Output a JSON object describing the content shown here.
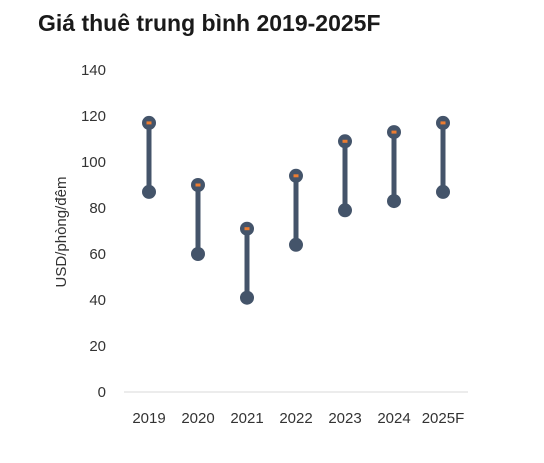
{
  "title": "Giá thuê trung bình 2019-2025F",
  "chart_data": {
    "type": "range",
    "title": "Giá thuê trung bình 2019-2025F",
    "xlabel": "",
    "ylabel": "USD/phòng/đêm",
    "categories": [
      "2019",
      "2020",
      "2021",
      "2022",
      "2023",
      "2024",
      "2025F"
    ],
    "series": [
      {
        "name": "",
        "low": [
          87,
          60,
          41,
          64,
          79,
          83,
          87
        ],
        "high": [
          117,
          90,
          71,
          94,
          109,
          113,
          117
        ]
      }
    ],
    "ylim": [
      0,
      140
    ],
    "yticks": [
      0,
      20,
      40,
      60,
      80,
      100,
      120,
      140
    ],
    "grid": false,
    "colors": {
      "bar": "#44546a",
      "marker": "#ed7d31",
      "axis": "#d9d9d9"
    }
  }
}
